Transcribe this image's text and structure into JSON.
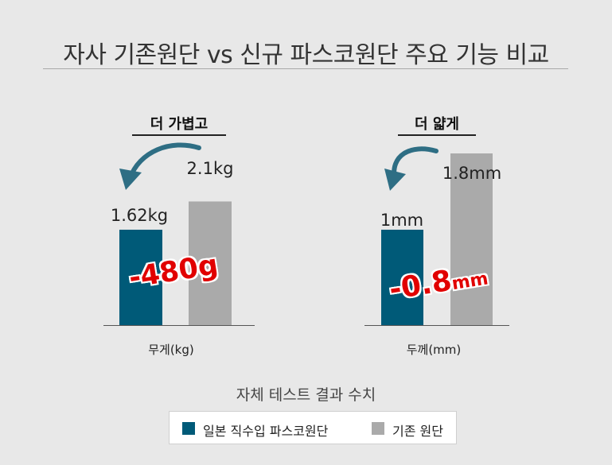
{
  "header": {
    "title": "자사 기존원단 vs 신규 파스코원단 주요 기능 비교"
  },
  "colors": {
    "new_fabric": "#005a78",
    "old_fabric": "#aaaaaa",
    "delta": "#e10000",
    "arrow": "#2e6e84"
  },
  "chart_data": [
    {
      "type": "bar",
      "title": "더 가볍고",
      "xlabel": "무게(kg)",
      "categories": [
        "일본 직수입 파스코원단",
        "기존 원단"
      ],
      "values": [
        1.62,
        2.1
      ],
      "value_labels": [
        "1.62kg",
        "2.1kg"
      ],
      "annotation": "-480g"
    },
    {
      "type": "bar",
      "title": "더 얇게",
      "xlabel": "두께(mm)",
      "categories": [
        "일본 직수입 파스코원단",
        "기존 원단"
      ],
      "values": [
        1.0,
        1.8
      ],
      "value_labels": [
        "1mm",
        "1.8mm"
      ],
      "annotation_main": "-0.8",
      "annotation_unit": "mm"
    }
  ],
  "footer": {
    "note": "자체 테스트 결과 수치"
  },
  "legend": {
    "items": [
      "일본 직수입 파스코원단",
      "기존 원단"
    ]
  }
}
